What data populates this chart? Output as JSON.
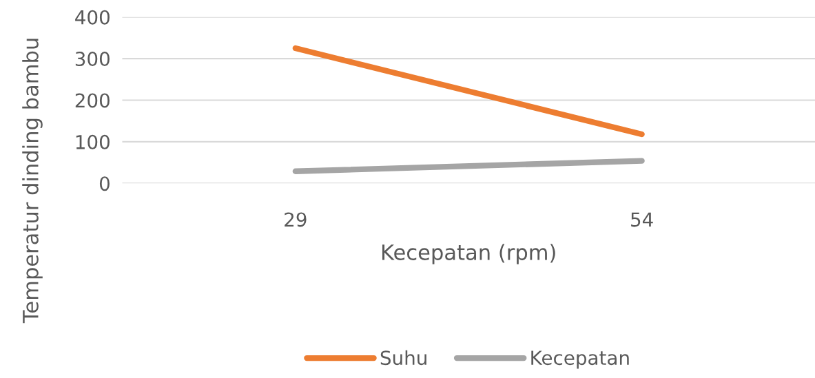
{
  "chart_data": {
    "type": "line",
    "xlabel": "Kecepatan (rpm)",
    "ylabel": "Temperatur dinding bambu",
    "categories": [
      "29",
      "54"
    ],
    "series": [
      {
        "name": "Suhu",
        "color": "#ed7d31",
        "values": [
          325,
          118
        ]
      },
      {
        "name": "Kecepatan",
        "color": "#a5a5a5",
        "values": [
          29,
          54
        ]
      }
    ],
    "ylim": [
      0,
      400
    ],
    "yticks": [
      0,
      100,
      200,
      300,
      400
    ],
    "grid": "y",
    "legend": "bottom",
    "marker": "none",
    "line_style": "solid"
  }
}
